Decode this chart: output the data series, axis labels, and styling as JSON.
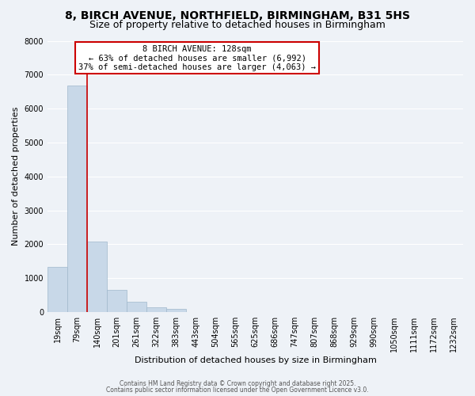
{
  "title": "8, BIRCH AVENUE, NORTHFIELD, BIRMINGHAM, B31 5HS",
  "subtitle": "Size of property relative to detached houses in Birmingham",
  "xlabel": "Distribution of detached houses by size in Birmingham",
  "ylabel": "Number of detached properties",
  "bin_labels": [
    "19sqm",
    "79sqm",
    "140sqm",
    "201sqm",
    "261sqm",
    "322sqm",
    "383sqm",
    "443sqm",
    "504sqm",
    "565sqm",
    "625sqm",
    "686sqm",
    "747sqm",
    "807sqm",
    "868sqm",
    "929sqm",
    "990sqm",
    "1050sqm",
    "1111sqm",
    "1172sqm",
    "1232sqm"
  ],
  "bar_heights": [
    1340,
    6680,
    2090,
    650,
    310,
    150,
    90,
    0,
    0,
    0,
    0,
    0,
    0,
    0,
    0,
    0,
    0,
    0,
    0,
    0,
    0
  ],
  "bar_color": "#c8d8e8",
  "bar_edgecolor": "#a0b8cc",
  "vline_color": "#cc0000",
  "vline_x": 1.5,
  "ylim": [
    0,
    8000
  ],
  "yticks": [
    0,
    1000,
    2000,
    3000,
    4000,
    5000,
    6000,
    7000,
    8000
  ],
  "annotation_title": "8 BIRCH AVENUE: 128sqm",
  "annotation_line1": "← 63% of detached houses are smaller (6,992)",
  "annotation_line2": "37% of semi-detached houses are larger (4,063) →",
  "annotation_box_facecolor": "#ffffff",
  "annotation_box_edgecolor": "#cc0000",
  "footer1": "Contains HM Land Registry data © Crown copyright and database right 2025.",
  "footer2": "Contains public sector information licensed under the Open Government Licence v3.0.",
  "bg_color": "#eef2f7",
  "grid_color": "#ffffff",
  "title_fontsize": 10,
  "subtitle_fontsize": 9,
  "ylabel_fontsize": 8,
  "xlabel_fontsize": 8,
  "tick_fontsize": 7,
  "annot_fontsize": 7.5,
  "footer_fontsize": 5.5
}
